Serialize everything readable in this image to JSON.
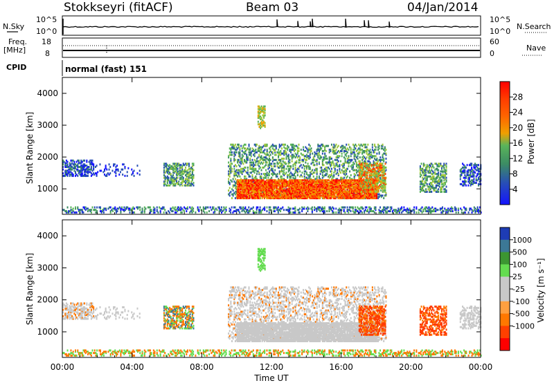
{
  "header": {
    "station": "Stokkseyri (fitACF)",
    "beam": "Beam 03",
    "date": "04/Jan/2014"
  },
  "top_panels": {
    "nsky_label": "N.Sky",
    "nsky_ticks": [
      "10^5",
      "10^0"
    ],
    "nsearch_label": "N.Search",
    "nsearch_ticks": [
      "10^5",
      "10^0"
    ],
    "freq_label_1": "Freq.",
    "freq_label_2": "[MHz]",
    "freq_ticks": [
      "18",
      "8"
    ],
    "nave_label": "Nave",
    "nave_ticks": [
      "60",
      "0"
    ],
    "cpid_label": "CPID",
    "cpid_text": "normal (fast) 151"
  },
  "colors": {
    "power": [
      "#1414ff",
      "#2850b4",
      "#3c8c64",
      "#5ab45a",
      "#a0c83c",
      "#f0a000",
      "#ff6400",
      "#ff3c00",
      "#ff0000"
    ],
    "velocity": [
      "#ff0000",
      "#ff4000",
      "#ff7800",
      "#ffa040",
      "#c8c8c8",
      "#c8c8c8",
      "#64dc50",
      "#3c9632",
      "#3c7896",
      "#1e3cb4"
    ]
  },
  "chart_data": [
    {
      "type": "heatmap",
      "title": "",
      "ylabel": "Slant Range [km]",
      "yticks": [
        "1000",
        "2000",
        "3000",
        "4000"
      ],
      "ylim": [
        200,
        4500
      ],
      "xlim": [
        0,
        24
      ],
      "colorbar_label": "Power [dB]",
      "colorbar_ticks": [
        "4",
        "8",
        "12",
        "16",
        "20",
        "24",
        "28"
      ],
      "clim": [
        0,
        32
      ]
    },
    {
      "type": "heatmap",
      "title": "",
      "ylabel": "Slant Range [km]",
      "yticks": [
        "1000",
        "2000",
        "3000",
        "4000"
      ],
      "ylim": [
        200,
        4500
      ],
      "xlim": [
        0,
        24
      ],
      "colorbar_label": "Velocity [m s⁻¹]",
      "colorbar_ticks": [
        "1000",
        "500",
        "100",
        "25",
        "-25",
        "-100",
        "-500",
        "-1000"
      ],
      "xlabel": "Time UT",
      "xticks": [
        "00:00",
        "04:00",
        "08:00",
        "12:00",
        "16:00",
        "20:00",
        "00:00"
      ]
    }
  ]
}
